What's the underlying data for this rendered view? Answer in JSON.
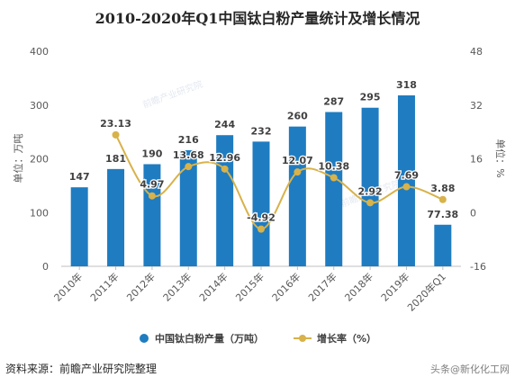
{
  "chart_data": {
    "type": "bar",
    "title": "2010-2020年Q1中国钛白粉产量统计及增长情况",
    "categories": [
      "2010年",
      "2011年",
      "2012年",
      "2013年",
      "2014年",
      "2015年",
      "2016年",
      "2017年",
      "2018年",
      "2019年",
      "2020年Q1"
    ],
    "series": [
      {
        "name": "中国钛白粉产量（万吨）",
        "type": "bar",
        "axis": "left",
        "color": "#1f7cc1",
        "values": [
          147,
          181,
          190,
          216,
          244,
          232,
          260,
          287,
          295,
          318,
          77.38
        ],
        "labels": [
          "147",
          "181",
          "190",
          "216",
          "244",
          "232",
          "260",
          "287",
          "295",
          "318",
          "77.38"
        ]
      },
      {
        "name": "增长率（%）",
        "type": "line",
        "axis": "right",
        "color": "#d8b24a",
        "values": [
          null,
          23.13,
          4.97,
          13.68,
          12.96,
          -4.92,
          12.07,
          10.38,
          2.92,
          7.69,
          3.88
        ],
        "labels": [
          "",
          "23.13",
          "4.97",
          "13.68",
          "12.96",
          "-4.92",
          "12.07",
          "10.38",
          "2.92",
          "7.69",
          "3.88"
        ]
      }
    ],
    "ylabel": "单位：万吨",
    "ylabel_right": "单位：%",
    "ylim": [
      0,
      400
    ],
    "ylim_right": [
      -16,
      48
    ],
    "yticks": [
      "0",
      "100",
      "200",
      "300",
      "400"
    ],
    "yticks_right": [
      "-16",
      "0",
      "16",
      "32",
      "48"
    ],
    "grid": false,
    "legend_position": "bottom"
  },
  "source": "资料来源：前瞻产业研究院整理",
  "watermarks": [
    "前瞻产业研究院",
    "前瞻产业研究院",
    "头条@新化化工网"
  ],
  "colors": {
    "bar": "#1f7cc1",
    "line": "#d8b24a",
    "axis": "#bfbfbf",
    "text": "#595959"
  }
}
